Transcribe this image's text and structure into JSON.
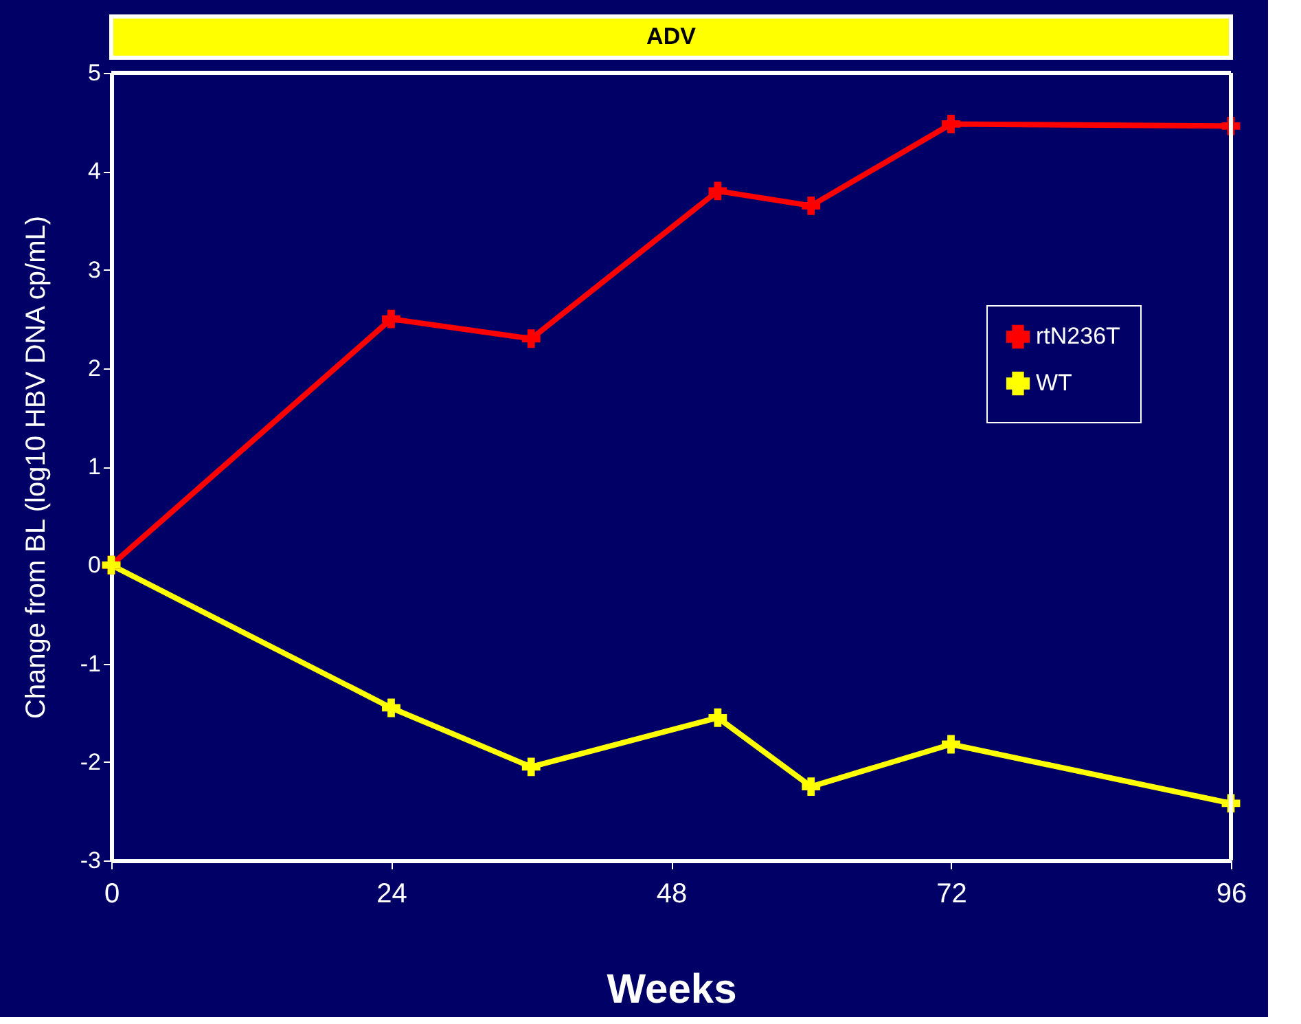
{
  "chart_data": {
    "type": "line",
    "title": "ADV",
    "xlabel": "Weeks",
    "ylabel": "Change from BL (log10 HBV DNA cp/mL)",
    "xlim": [
      0,
      96
    ],
    "xticks": [
      0,
      24,
      48,
      72,
      96
    ],
    "ylim": [
      -3,
      5
    ],
    "yticks": [
      -3,
      -2,
      -1,
      0,
      1,
      2,
      3,
      4,
      5
    ],
    "x": [
      0,
      24,
      36,
      52,
      60,
      72,
      96
    ],
    "series": [
      {
        "name": "rtN236T",
        "color": "#ff0000",
        "values": [
          0,
          2.5,
          2.3,
          3.8,
          3.65,
          4.48,
          4.46
        ]
      },
      {
        "name": "WT",
        "color": "#ffff00",
        "values": [
          0,
          -1.45,
          -2.05,
          -1.55,
          -2.25,
          -1.82,
          -2.42
        ]
      }
    ],
    "marker": "cross",
    "line_style": "solid",
    "grid": false,
    "legend": "right"
  }
}
